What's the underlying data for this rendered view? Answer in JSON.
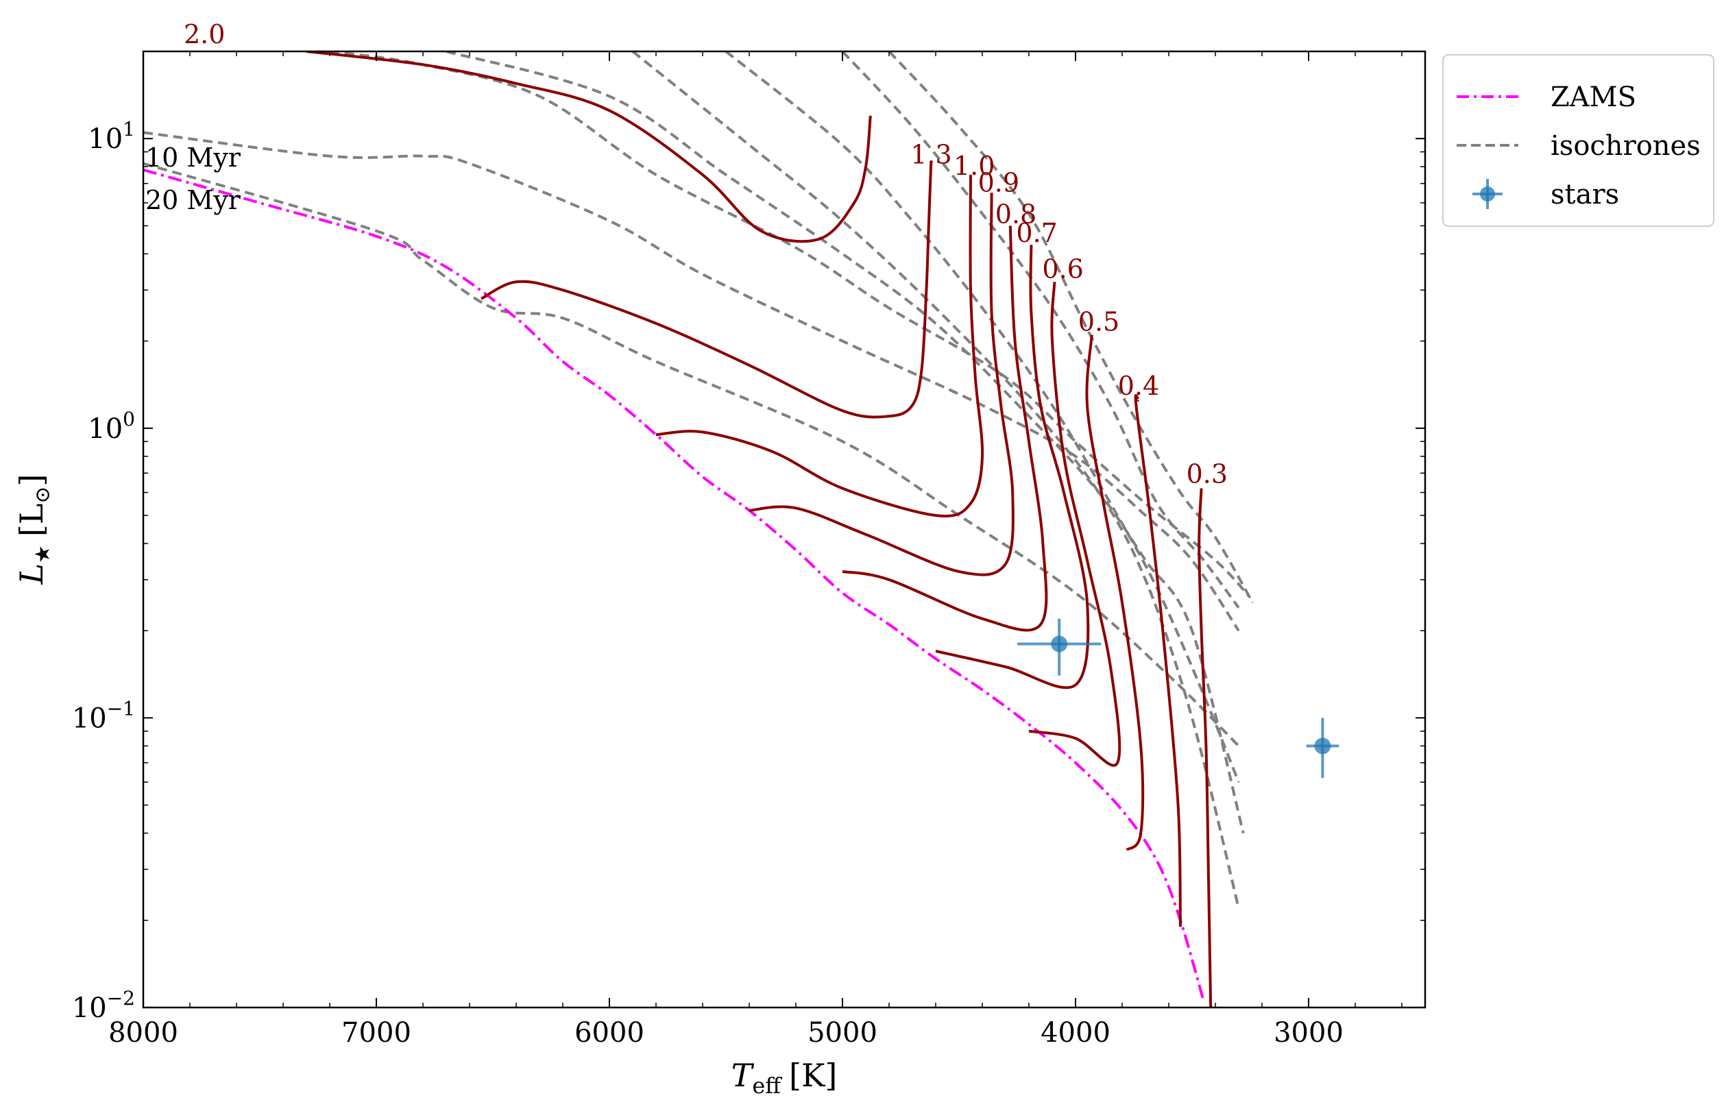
{
  "chart_data": {
    "type": "line",
    "xlabel_html": "T<sub>eff</sub> [K]",
    "xlabel": {
      "main": "T",
      "sub": "eff",
      "unit": "[K]"
    },
    "ylabel": {
      "main": "L",
      "sub": "★",
      "unit_main": "[L",
      "unit_sub": "⊙",
      "unit_close": "]"
    },
    "xlim": [
      8000,
      2500
    ],
    "ylim": [
      0.01,
      20
    ],
    "yscale": "log",
    "x_ticks": [
      8000,
      7000,
      6000,
      5000,
      4000,
      3000
    ],
    "x_tick_labels": [
      "8000",
      "7000",
      "6000",
      "5000",
      "4000",
      "3000"
    ],
    "y_ticks": [
      {
        "base": "10",
        "exp": "1"
      },
      {
        "base": "10",
        "exp": "0"
      },
      {
        "base": "10",
        "exp": "−1"
      },
      {
        "base": "10",
        "exp": "−2"
      }
    ],
    "legend": {
      "position": "outside-right",
      "entries": [
        "ZAMS",
        "isochrones",
        "stars"
      ]
    },
    "colors": {
      "tracks": "#8b0000",
      "zams": "#ff00ff",
      "isochrones": "#808080",
      "stars": "#1f77b4"
    },
    "track_labels": [
      "2.0",
      "1.3",
      "1.0",
      "0.9",
      "0.8",
      "0.7",
      "0.6",
      "0.5",
      "0.4",
      "0.3"
    ],
    "isochrone_labels": [
      "10 Myr",
      "20 Myr"
    ],
    "zams": {
      "name": "ZAMS",
      "points": [
        [
          8000,
          7.8
        ],
        [
          7500,
          6.0
        ],
        [
          7000,
          4.6
        ],
        [
          6700,
          3.6
        ],
        [
          6400,
          2.4
        ],
        [
          6200,
          1.7
        ],
        [
          6000,
          1.3
        ],
        [
          5800,
          0.95
        ],
        [
          5600,
          0.68
        ],
        [
          5400,
          0.52
        ],
        [
          5200,
          0.38
        ],
        [
          5000,
          0.27
        ],
        [
          4800,
          0.21
        ],
        [
          4600,
          0.16
        ],
        [
          4400,
          0.125
        ],
        [
          4200,
          0.095
        ],
        [
          4000,
          0.07
        ],
        [
          3800,
          0.048
        ],
        [
          3650,
          0.032
        ],
        [
          3550,
          0.02
        ],
        [
          3450,
          0.0105
        ]
      ]
    },
    "isochrones": {
      "name": "isochrones",
      "series": [
        [
          [
            8000,
            10.5
          ],
          [
            7200,
            8.7
          ],
          [
            6800,
            8.7
          ],
          [
            6600,
            8.2
          ],
          [
            6000,
            5.2
          ],
          [
            5600,
            3.4
          ],
          [
            5000,
            2.0
          ],
          [
            4400,
            1.2
          ],
          [
            4000,
            0.8
          ],
          [
            3700,
            0.5
          ],
          [
            3500,
            0.35
          ],
          [
            3300,
            0.2
          ]
        ],
        [
          [
            8000,
            8.2
          ],
          [
            7000,
            4.8
          ],
          [
            6800,
            3.8
          ],
          [
            6500,
            2.6
          ],
          [
            6200,
            2.4
          ],
          [
            5800,
            1.7
          ],
          [
            5000,
            0.9
          ],
          [
            4500,
            0.5
          ],
          [
            4000,
            0.27
          ],
          [
            3600,
            0.14
          ],
          [
            3300,
            0.08
          ]
        ],
        [
          [
            7200,
            20
          ],
          [
            6800,
            18
          ],
          [
            6300,
            14
          ],
          [
            5800,
            7.5
          ],
          [
            5200,
            4.2
          ],
          [
            4800,
            2.6
          ],
          [
            4300,
            1.5
          ],
          [
            4000,
            0.9
          ],
          [
            3700,
            0.55
          ],
          [
            3400,
            0.35
          ],
          [
            3250,
            0.26
          ]
        ],
        [
          [
            6700,
            20
          ],
          [
            6000,
            14
          ],
          [
            5500,
            7.5
          ],
          [
            5000,
            4.0
          ],
          [
            4600,
            2.3
          ],
          [
            4200,
            1.1
          ],
          [
            3900,
            0.6
          ],
          [
            3700,
            0.35
          ],
          [
            3500,
            0.2
          ],
          [
            3280,
            0.04
          ]
        ],
        [
          [
            5900,
            20
          ],
          [
            5400,
            9.5
          ],
          [
            5000,
            5.2
          ],
          [
            4600,
            2.6
          ],
          [
            4200,
            1.2
          ],
          [
            3900,
            0.6
          ],
          [
            3700,
            0.3
          ],
          [
            3500,
            0.1
          ],
          [
            3300,
            0.022
          ]
        ],
        [
          [
            5500,
            20
          ],
          [
            5000,
            9.5
          ],
          [
            4700,
            5.2
          ],
          [
            4400,
            2.6
          ],
          [
            4100,
            1.2
          ],
          [
            3850,
            0.55
          ],
          [
            3650,
            0.28
          ],
          [
            3450,
            0.12
          ],
          [
            3300,
            0.06
          ]
        ],
        [
          [
            5000,
            20
          ],
          [
            4700,
            11
          ],
          [
            4400,
            5.5
          ],
          [
            4100,
            2.6
          ],
          [
            3850,
            1.2
          ],
          [
            3650,
            0.55
          ],
          [
            3450,
            0.35
          ],
          [
            3300,
            0.24
          ]
        ],
        [
          [
            4800,
            20
          ],
          [
            4500,
            11
          ],
          [
            4200,
            5.5
          ],
          [
            3950,
            2.2
          ],
          [
            3750,
            1.1
          ],
          [
            3550,
            0.6
          ],
          [
            3400,
            0.42
          ],
          [
            3240,
            0.25
          ]
        ]
      ]
    },
    "tracks": {
      "name": "evolutionary tracks",
      "series": [
        {
          "label": "2.0",
          "points": [
            [
              7300,
              20
            ],
            [
              6800,
              18
            ],
            [
              6400,
              15.5
            ],
            [
              6000,
              12.5
            ],
            [
              5600,
              7.5
            ],
            [
              5350,
              4.8
            ],
            [
              5100,
              4.5
            ],
            [
              4950,
              6.0
            ],
            [
              4900,
              8.0
            ],
            [
              4880,
              12
            ]
          ]
        },
        {
          "label": "1.3",
          "points": [
            [
              6550,
              2.8
            ],
            [
              6400,
              3.2
            ],
            [
              6200,
              3.0
            ],
            [
              5800,
              2.3
            ],
            [
              5400,
              1.65
            ],
            [
              5000,
              1.15
            ],
            [
              4800,
              1.1
            ],
            [
              4700,
              1.2
            ],
            [
              4660,
              1.6
            ],
            [
              4640,
              3.0
            ],
            [
              4630,
              5.0
            ],
            [
              4620,
              8.2
            ]
          ]
        },
        {
          "label": "1.0",
          "points": [
            [
              5800,
              0.95
            ],
            [
              5600,
              0.97
            ],
            [
              5300,
              0.83
            ],
            [
              5000,
              0.62
            ],
            [
              4600,
              0.5
            ],
            [
              4450,
              0.55
            ],
            [
              4400,
              0.8
            ],
            [
              4430,
              1.5
            ],
            [
              4450,
              3.0
            ],
            [
              4450,
              7.5
            ]
          ]
        },
        {
          "label": "0.9",
          "points": [
            [
              5400,
              0.52
            ],
            [
              5200,
              0.53
            ],
            [
              4900,
              0.43
            ],
            [
              4500,
              0.32
            ],
            [
              4300,
              0.34
            ],
            [
              4270,
              0.6
            ],
            [
              4320,
              1.2
            ],
            [
              4360,
              2.5
            ],
            [
              4360,
              6.5
            ]
          ]
        },
        {
          "label": "0.8",
          "points": [
            [
              5000,
              0.32
            ],
            [
              4800,
              0.3
            ],
            [
              4400,
              0.22
            ],
            [
              4150,
              0.21
            ],
            [
              4140,
              0.4
            ],
            [
              4200,
              0.9
            ],
            [
              4260,
              2.0
            ],
            [
              4280,
              5.0
            ]
          ]
        },
        {
          "label": "0.7",
          "points": [
            [
              4600,
              0.17
            ],
            [
              4300,
              0.15
            ],
            [
              4000,
              0.13
            ],
            [
              3950,
              0.25
            ],
            [
              4050,
              0.6
            ],
            [
              4150,
              1.2
            ],
            [
              4190,
              2.5
            ],
            [
              4190,
              4.3
            ]
          ]
        },
        {
          "label": "0.6",
          "points": [
            [
              4200,
              0.09
            ],
            [
              4000,
              0.085
            ],
            [
              3820,
              0.07
            ],
            [
              3850,
              0.15
            ],
            [
              3950,
              0.35
            ],
            [
              4050,
              0.8
            ],
            [
              4100,
              2.0
            ],
            [
              4090,
              3.2
            ]
          ]
        },
        {
          "label": "0.5",
          "points": [
            [
              3780,
              0.035
            ],
            [
              3720,
              0.04
            ],
            [
              3720,
              0.08
            ],
            [
              3800,
              0.25
            ],
            [
              3880,
              0.55
            ],
            [
              3950,
              1.2
            ],
            [
              3930,
              2.1
            ]
          ]
        },
        {
          "label": "0.4",
          "points": [
            [
              3550,
              0.019
            ],
            [
              3560,
              0.05
            ],
            [
              3620,
              0.18
            ],
            [
              3680,
              0.5
            ],
            [
              3740,
              1.2
            ],
            [
              3730,
              1.25
            ]
          ]
        },
        {
          "label": "0.3",
          "points": [
            [
              3420,
              0.01
            ],
            [
              3430,
              0.03
            ],
            [
              3440,
              0.08
            ],
            [
              3460,
              0.2
            ],
            [
              3470,
              0.4
            ],
            [
              3460,
              0.62
            ]
          ]
        }
      ]
    },
    "stars": {
      "name": "stars",
      "points": [
        {
          "teff": 4070,
          "teff_err": 180,
          "l": 0.18,
          "l_err_lo": 0.04,
          "l_err_hi": 0.04
        },
        {
          "teff": 2940,
          "teff_err": 70,
          "l": 0.08,
          "l_err_lo": 0.018,
          "l_err_hi": 0.02
        }
      ]
    }
  }
}
